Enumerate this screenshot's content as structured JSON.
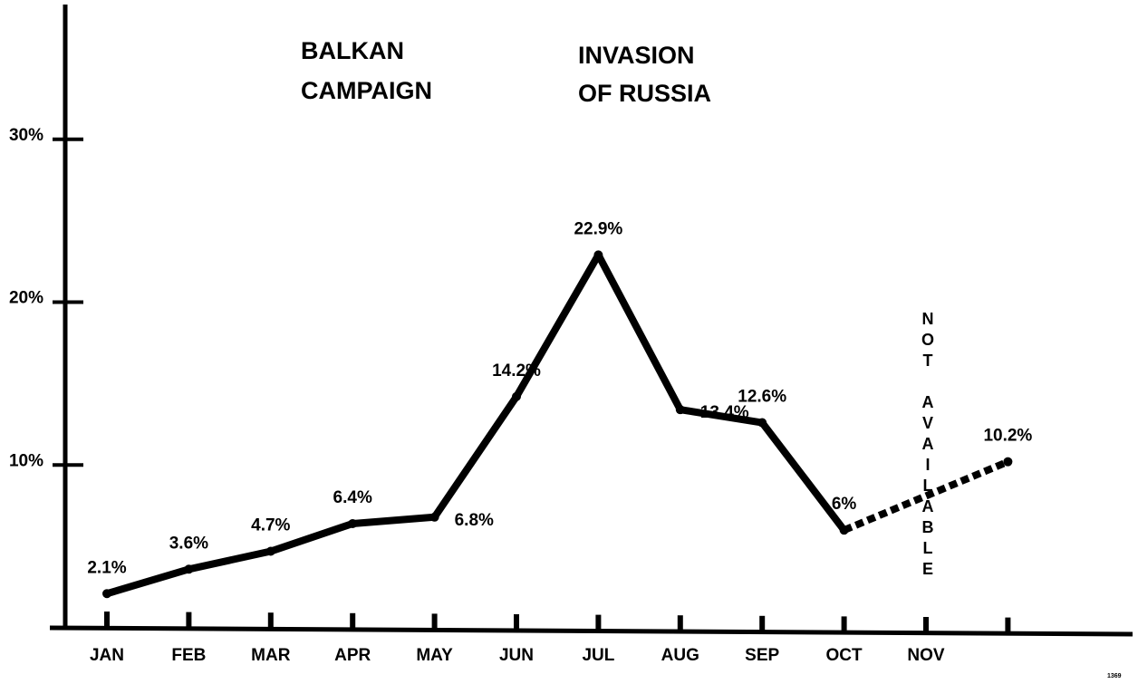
{
  "chart_data": {
    "type": "line",
    "categories": [
      "JAN",
      "FEB",
      "MAR",
      "APR",
      "MAY",
      "JUN",
      "JUL",
      "AUG",
      "SEP",
      "OCT",
      "NOV",
      null
    ],
    "values": [
      2.1,
      3.6,
      4.7,
      6.4,
      6.8,
      14.2,
      22.9,
      13.4,
      12.6,
      6,
      null,
      10.2
    ],
    "value_labels": [
      "2.1%",
      "3.6%",
      "4.7%",
      "6.4%",
      "6.8%",
      "14.2%",
      "22.9%",
      "13.4%",
      "12.6%",
      "6%",
      null,
      "10.2%"
    ],
    "color": "#000000",
    "ylim": [
      0,
      38
    ],
    "yticks": [
      {
        "value": 10,
        "label": "10%"
      },
      {
        "value": 20,
        "label": "20%"
      },
      {
        "value": 30,
        "label": "30%"
      }
    ],
    "annotations": [
      {
        "lines": [
          "BALKAN",
          "CAMPAIGN"
        ]
      },
      {
        "lines": [
          "INVASION",
          "OF RUSSIA"
        ]
      },
      {
        "text": "NOT AVAILABLE"
      },
      {
        "text": "1369"
      }
    ]
  }
}
